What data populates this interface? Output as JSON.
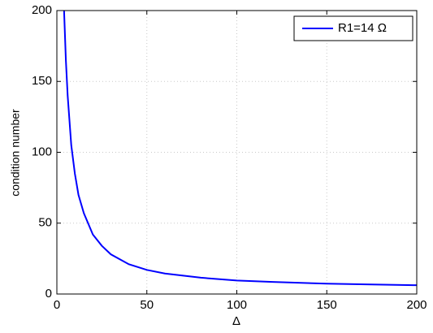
{
  "chart_data": {
    "type": "line",
    "x_label": "Δ",
    "y_label": "condition number",
    "x": [
      4,
      5,
      6,
      8,
      10,
      12,
      15,
      20,
      25,
      30,
      40,
      50,
      60,
      80,
      100,
      120,
      150,
      175,
      200
    ],
    "series": [
      {
        "name": "R1=14 Ω",
        "color": "#0000ff",
        "values": [
          200,
          165,
          140,
          105,
          85,
          70,
          57,
          42,
          34,
          28,
          21,
          17,
          14.5,
          11.5,
          9.5,
          8.5,
          7.3,
          6.7,
          6.2
        ]
      }
    ],
    "xlim": [
      0,
      200
    ],
    "xticks": [
      0,
      50,
      100,
      150,
      200
    ],
    "ylim": [
      0,
      200
    ],
    "yticks": [
      0,
      50,
      100,
      150,
      200
    ],
    "grid": true,
    "legend": "upper right"
  }
}
